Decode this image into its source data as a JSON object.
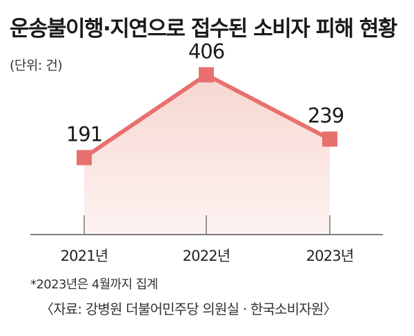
{
  "title": "운송불이행·지연으로 접수된 소비자 피해 현황",
  "unit_label": "(단위: 건)",
  "note": "*2023년은 4월까지 집계",
  "source": "〈자료: 강병원 더불어민주당 의원실 · 한국소비자원〉",
  "colors": {
    "line": "#e8716f",
    "marker": "#e8716f",
    "fill_top": "#f7d6d0",
    "fill_bottom": "#fdf3f1",
    "axis": "#555555"
  },
  "chart_data": {
    "type": "line",
    "categories": [
      "2021년",
      "2022년",
      "2023년"
    ],
    "values": [
      191,
      406,
      239
    ],
    "data_labels": [
      "191",
      "406",
      "239"
    ],
    "ylim": [
      0,
      430
    ],
    "grid": false,
    "legend": "none"
  }
}
